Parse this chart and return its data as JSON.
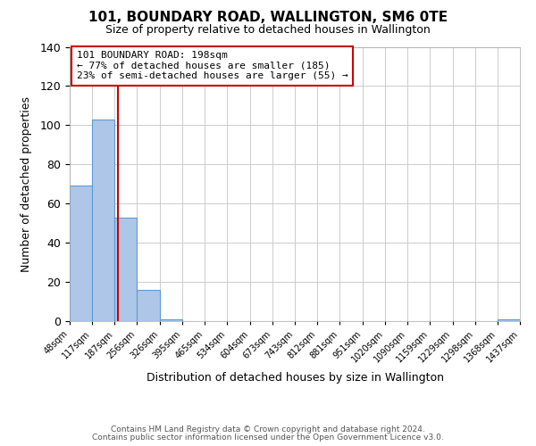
{
  "title": "101, BOUNDARY ROAD, WALLINGTON, SM6 0TE",
  "subtitle": "Size of property relative to detached houses in Wallington",
  "xlabel": "Distribution of detached houses by size in Wallington",
  "ylabel": "Number of detached properties",
  "footer_line1": "Contains HM Land Registry data © Crown copyright and database right 2024.",
  "footer_line2": "Contains public sector information licensed under the Open Government Licence v3.0.",
  "bin_edges": [
    48,
    117,
    187,
    256,
    326,
    395,
    465,
    534,
    604,
    673,
    743,
    812,
    881,
    951,
    1020,
    1090,
    1159,
    1229,
    1298,
    1368,
    1437
  ],
  "bin_labels": [
    "48sqm",
    "117sqm",
    "187sqm",
    "256sqm",
    "326sqm",
    "395sqm",
    "465sqm",
    "534sqm",
    "604sqm",
    "673sqm",
    "743sqm",
    "812sqm",
    "881sqm",
    "951sqm",
    "1020sqm",
    "1090sqm",
    "1159sqm",
    "1229sqm",
    "1298sqm",
    "1368sqm",
    "1437sqm"
  ],
  "counts": [
    69,
    103,
    53,
    16,
    1,
    0,
    0,
    0,
    0,
    0,
    0,
    0,
    0,
    0,
    0,
    0,
    0,
    0,
    0,
    1
  ],
  "bar_color": "#aec6e8",
  "bar_edge_color": "#5b9bd5",
  "property_line_x": 198,
  "annotation_line1": "101 BOUNDARY ROAD: 198sqm",
  "annotation_line2": "← 77% of detached houses are smaller (185)",
  "annotation_line3": "23% of semi-detached houses are larger (55) →",
  "annotation_box_color": "#ffffff",
  "annotation_box_edge_color": "#cc0000",
  "annotation_text_color": "#000000",
  "vline_color": "#cc0000",
  "ylim": [
    0,
    140
  ],
  "yticks": [
    0,
    20,
    40,
    60,
    80,
    100,
    120,
    140
  ],
  "background_color": "#ffffff",
  "grid_color": "#cccccc"
}
